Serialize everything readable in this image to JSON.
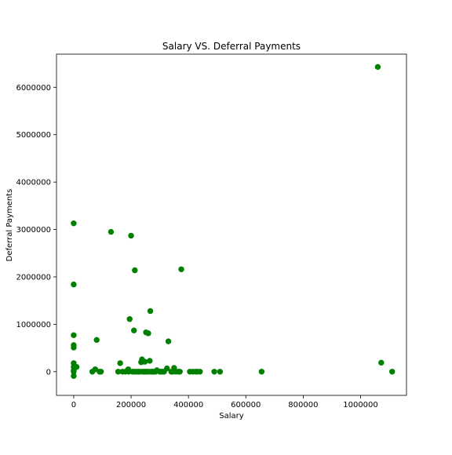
{
  "chart_data": {
    "type": "scatter",
    "title": "Salary VS. Deferral Payments",
    "xlabel": "Salary",
    "ylabel": "Deferral Payments",
    "xlim": [
      -60000,
      1160000
    ],
    "ylim": [
      -500000,
      6700000
    ],
    "xticks": [
      0,
      200000,
      400000,
      600000,
      800000,
      1000000
    ],
    "xtick_labels": [
      "0",
      "200000",
      "400000",
      "600000",
      "800000",
      "1000000"
    ],
    "yticks": [
      0,
      1000000,
      2000000,
      3000000,
      4000000,
      5000000,
      6000000
    ],
    "ytick_labels": [
      "0",
      "1000000",
      "2000000",
      "3000000",
      "4000000",
      "5000000",
      "6000000"
    ],
    "grid": false,
    "marker_color": "#008000",
    "series": [
      {
        "points": [
          [
            0,
            3130000
          ],
          [
            0,
            1840000
          ],
          [
            0,
            770000
          ],
          [
            0,
            560000
          ],
          [
            0,
            510000
          ],
          [
            0,
            180000
          ],
          [
            0,
            100000
          ],
          [
            0,
            30000
          ],
          [
            0,
            0
          ],
          [
            0,
            -90000
          ],
          [
            10000,
            100000
          ],
          [
            65000,
            0
          ],
          [
            75000,
            50000
          ],
          [
            80000,
            670000
          ],
          [
            90000,
            0
          ],
          [
            95000,
            0
          ],
          [
            130000,
            2950000
          ],
          [
            155000,
            0
          ],
          [
            162000,
            180000
          ],
          [
            170000,
            0
          ],
          [
            180000,
            0
          ],
          [
            190000,
            50000
          ],
          [
            192000,
            0
          ],
          [
            195000,
            1110000
          ],
          [
            200000,
            2870000
          ],
          [
            205000,
            0
          ],
          [
            210000,
            870000
          ],
          [
            212000,
            0
          ],
          [
            213000,
            2140000
          ],
          [
            220000,
            0
          ],
          [
            225000,
            0
          ],
          [
            230000,
            0
          ],
          [
            235000,
            200000
          ],
          [
            238000,
            260000
          ],
          [
            240000,
            0
          ],
          [
            245000,
            0
          ],
          [
            248000,
            210000
          ],
          [
            250000,
            0
          ],
          [
            252000,
            830000
          ],
          [
            255000,
            0
          ],
          [
            260000,
            810000
          ],
          [
            262000,
            0
          ],
          [
            265000,
            230000
          ],
          [
            267000,
            1280000
          ],
          [
            270000,
            0
          ],
          [
            275000,
            0
          ],
          [
            280000,
            0
          ],
          [
            285000,
            0
          ],
          [
            290000,
            30000
          ],
          [
            300000,
            0
          ],
          [
            305000,
            0
          ],
          [
            310000,
            0
          ],
          [
            315000,
            0
          ],
          [
            325000,
            70000
          ],
          [
            330000,
            640000
          ],
          [
            340000,
            0
          ],
          [
            345000,
            0
          ],
          [
            350000,
            80000
          ],
          [
            355000,
            0
          ],
          [
            365000,
            0
          ],
          [
            370000,
            0
          ],
          [
            375000,
            2160000
          ],
          [
            405000,
            0
          ],
          [
            415000,
            0
          ],
          [
            425000,
            0
          ],
          [
            430000,
            0
          ],
          [
            440000,
            0
          ],
          [
            490000,
            0
          ],
          [
            510000,
            0
          ],
          [
            655000,
            0
          ],
          [
            1060000,
            6430000
          ],
          [
            1072000,
            190000
          ],
          [
            1110000,
            0
          ]
        ]
      }
    ]
  }
}
